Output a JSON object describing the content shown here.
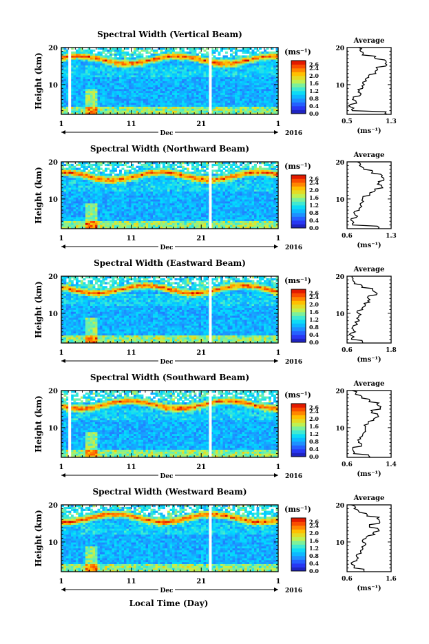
{
  "figure": {
    "x_axis_label": "Local Time (Day)",
    "year_label": "2016",
    "month_label": "Dec",
    "unit_label": "(ms⁻¹)",
    "avg_title": "Average",
    "height_label": "Height (km)"
  },
  "chart_data": [
    {
      "type": "heatmap",
      "title": "Spectral Width (Vertical Beam)",
      "xlabel": "",
      "ylabel": "Height (km)",
      "x_ticks": [
        "1",
        "11",
        "21",
        "1"
      ],
      "x_range_days": [
        1,
        32
      ],
      "y_ticks": [
        "10",
        "20"
      ],
      "ylim": [
        2,
        20
      ],
      "colorbar": {
        "label": "(ms⁻¹)",
        "ticks": [
          "2.6",
          "2.4",
          "2.0",
          "1.6",
          "1.2",
          "0.8",
          "0.4",
          "0.0"
        ],
        "range": [
          0.0,
          2.8
        ]
      },
      "data_gaps_days": [
        2.2,
        22.3
      ],
      "bright_layer_height_km": [
        16.0,
        17.5
      ],
      "average_profile": {
        "xlabel": "(ms⁻¹)",
        "xlim": [
          0.5,
          1.3
        ],
        "x_ticks": [
          "0.5",
          "1.3"
        ],
        "heights_km": [
          2,
          3,
          4,
          5,
          6,
          7,
          8,
          9,
          10,
          11,
          12,
          13,
          14,
          15,
          16,
          17,
          18,
          19,
          20
        ],
        "values": [
          1.2,
          0.6,
          0.55,
          0.65,
          0.6,
          0.75,
          0.72,
          0.78,
          0.8,
          0.85,
          0.9,
          1.0,
          1.05,
          1.2,
          1.2,
          1.0,
          0.8,
          0.75,
          0.7
        ]
      }
    },
    {
      "type": "heatmap",
      "title": "Spectral Width (Northward Beam)",
      "xlabel": "",
      "ylabel": "Height (km)",
      "x_ticks": [
        "1",
        "11",
        "21",
        "1"
      ],
      "x_range_days": [
        1,
        32
      ],
      "y_ticks": [
        "10",
        "20"
      ],
      "ylim": [
        2,
        20
      ],
      "colorbar": {
        "label": "(ms⁻¹)",
        "ticks": [
          "2.6",
          "2.4",
          "2.0",
          "1.6",
          "1.2",
          "0.8",
          "0.4",
          "0.0"
        ],
        "range": [
          0.0,
          2.8
        ]
      },
      "data_gaps_days": [
        22.3
      ],
      "bright_layer_height_km": [
        15.5,
        17.0
      ],
      "average_profile": {
        "xlabel": "(ms⁻¹)",
        "xlim": [
          0.6,
          1.3
        ],
        "x_ticks": [
          "0.6",
          "1.3"
        ],
        "heights_km": [
          2,
          3,
          4,
          5,
          6,
          7,
          8,
          9,
          10,
          11,
          12,
          13,
          14,
          15,
          16,
          17,
          18,
          19,
          20
        ],
        "values": [
          1.1,
          0.7,
          0.68,
          0.75,
          0.72,
          0.8,
          0.82,
          0.85,
          0.85,
          0.95,
          1.05,
          1.15,
          1.1,
          1.2,
          1.15,
          1.0,
          0.85,
          0.8,
          0.75
        ]
      }
    },
    {
      "type": "heatmap",
      "title": "Spectral Width (Eastward Beam)",
      "xlabel": "",
      "ylabel": "Height (km)",
      "x_ticks": [
        "1",
        "11",
        "21",
        "1"
      ],
      "x_range_days": [
        1,
        32
      ],
      "y_ticks": [
        "10",
        "20"
      ],
      "ylim": [
        2,
        20
      ],
      "colorbar": {
        "label": "(ms⁻¹)",
        "ticks": [
          "2.6",
          "2.4",
          "2.0",
          "1.6",
          "1.2",
          "0.8",
          "0.4",
          "0.0"
        ],
        "range": [
          0.0,
          2.8
        ]
      },
      "data_gaps_days": [
        22.3
      ],
      "bright_layer_height_km": [
        15.5,
        17.5
      ],
      "average_profile": {
        "xlabel": "(ms⁻¹)",
        "xlim": [
          0.6,
          1.8
        ],
        "x_ticks": [
          "0.6",
          "1.8"
        ],
        "heights_km": [
          2,
          3,
          4,
          5,
          6,
          7,
          8,
          9,
          10,
          11,
          12,
          13,
          14,
          15,
          16,
          17,
          18,
          19,
          20
        ],
        "values": [
          1.0,
          0.75,
          0.7,
          0.8,
          0.75,
          0.85,
          0.9,
          0.95,
          0.9,
          1.0,
          1.1,
          1.2,
          1.15,
          1.4,
          1.3,
          1.0,
          0.8,
          0.75,
          0.72
        ]
      }
    },
    {
      "type": "heatmap",
      "title": "Spectral Width (Southward Beam)",
      "xlabel": "",
      "ylabel": "Height (km)",
      "x_ticks": [
        "1",
        "11",
        "21",
        "1"
      ],
      "x_range_days": [
        1,
        32
      ],
      "y_ticks": [
        "10",
        "20"
      ],
      "ylim": [
        2,
        20
      ],
      "colorbar": {
        "label": "(ms⁻¹)",
        "ticks": [
          "2.6",
          "2.4",
          "2.0",
          "1.6",
          "1.2",
          "0.8",
          "0.4",
          "0.0"
        ],
        "range": [
          0.0,
          2.8
        ]
      },
      "data_gaps_days": [
        2.2,
        22.3
      ],
      "bright_layer_height_km": [
        15.5,
        17.0
      ],
      "average_profile": {
        "xlabel": "(ms⁻¹)",
        "xlim": [
          0.6,
          1.4
        ],
        "x_ticks": [
          "0.6",
          "1.4"
        ],
        "heights_km": [
          2,
          3,
          4,
          5,
          6,
          7,
          8,
          9,
          10,
          11,
          12,
          13,
          14,
          15,
          16,
          17,
          18,
          19,
          20
        ],
        "values": [
          1.0,
          0.72,
          0.7,
          0.85,
          0.8,
          0.85,
          0.9,
          0.95,
          0.92,
          1.0,
          1.1,
          1.15,
          1.05,
          1.2,
          1.15,
          1.0,
          0.85,
          0.75,
          0.7
        ]
      }
    },
    {
      "type": "heatmap",
      "title": "Spectral Width (Westward Beam)",
      "xlabel": "Local Time (Day)",
      "ylabel": "Height (km)",
      "x_ticks": [
        "1",
        "11",
        "21",
        "1"
      ],
      "x_range_days": [
        1,
        32
      ],
      "y_ticks": [
        "10",
        "20"
      ],
      "ylim": [
        2,
        20
      ],
      "colorbar": {
        "label": "(ms⁻¹)",
        "ticks": [
          "2.6",
          "2.4",
          "2.0",
          "1.6",
          "1.2",
          "0.8",
          "0.4",
          "0.0"
        ],
        "range": [
          0.0,
          2.8
        ]
      },
      "data_gaps_days": [
        22.3
      ],
      "bright_layer_height_km": [
        15.5,
        17.5
      ],
      "average_profile": {
        "xlabel": "(ms⁻¹)",
        "xlim": [
          0.6,
          1.6
        ],
        "x_ticks": [
          "0.6",
          "1.6"
        ],
        "heights_km": [
          2,
          3,
          4,
          5,
          6,
          7,
          8,
          9,
          10,
          11,
          12,
          13,
          14,
          15,
          16,
          17,
          18,
          19,
          20
        ],
        "values": [
          1.0,
          0.75,
          0.72,
          0.85,
          0.8,
          0.9,
          0.95,
          1.0,
          0.95,
          1.05,
          1.2,
          1.3,
          1.1,
          1.35,
          1.3,
          1.05,
          0.85,
          0.78,
          0.72
        ]
      }
    }
  ]
}
